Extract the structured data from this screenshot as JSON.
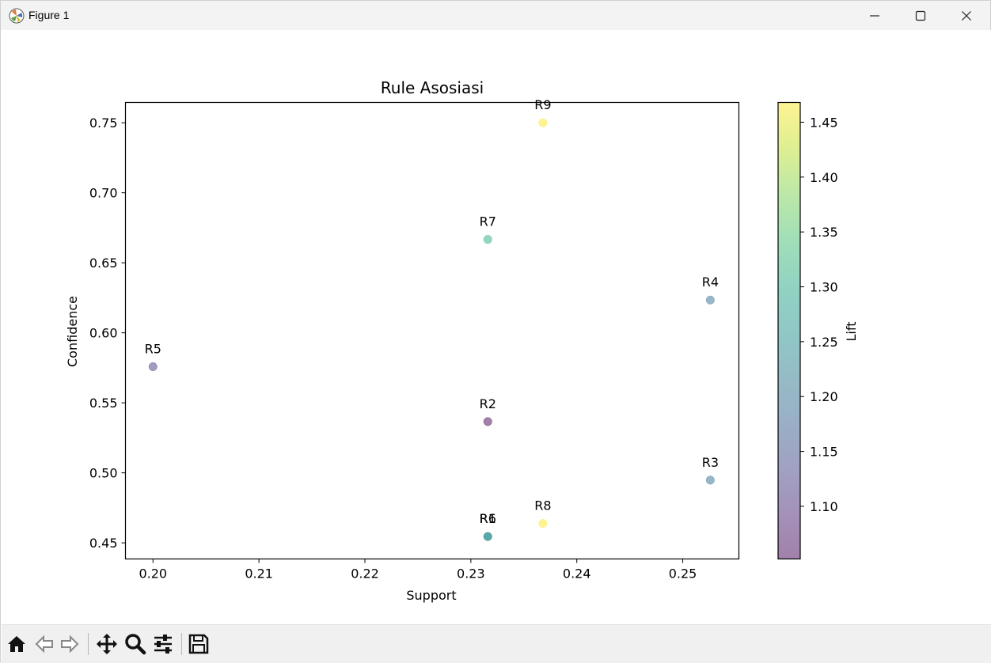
{
  "window": {
    "title": "Figure 1"
  },
  "toolbar": {
    "tools": [
      "home-icon",
      "back-arrow-icon",
      "forward-arrow-icon",
      "pan-icon",
      "zoom-icon",
      "configure-subplots-icon",
      "save-icon"
    ]
  },
  "chart_data": {
    "type": "scatter",
    "title": "Rule Asosiasi",
    "xlabel": "Support",
    "ylabel": "Confidence",
    "xlim": [
      0.1974,
      0.2553
    ],
    "ylim": [
      0.4385,
      0.7645
    ],
    "xticks": [
      0.2,
      0.21,
      0.22,
      0.23,
      0.24,
      0.25
    ],
    "xtick_labels": [
      "0.20",
      "0.21",
      "0.22",
      "0.23",
      "0.24",
      "0.25"
    ],
    "yticks": [
      0.45,
      0.5,
      0.55,
      0.6,
      0.65,
      0.7,
      0.75
    ],
    "ytick_labels": [
      "0.45",
      "0.50",
      "0.55",
      "0.60",
      "0.65",
      "0.70",
      "0.75"
    ],
    "colormap": "viridis",
    "alpha": 0.5,
    "colorbar": {
      "label": "Lift",
      "range": [
        1.052,
        1.468
      ],
      "ticks": [
        1.1,
        1.15,
        1.2,
        1.25,
        1.3,
        1.35,
        1.4,
        1.45
      ],
      "tick_labels": [
        "1.10",
        "1.15",
        "1.20",
        "1.25",
        "1.30",
        "1.35",
        "1.40",
        "1.45"
      ]
    },
    "points": [
      {
        "label": "R1",
        "support": 0.2316,
        "confidence": 0.4545,
        "lift": 1.25
      },
      {
        "label": "R2",
        "support": 0.2316,
        "confidence": 0.5366,
        "lift": 1.052
      },
      {
        "label": "R3",
        "support": 0.2526,
        "confidence": 0.4948,
        "lift": 1.2
      },
      {
        "label": "R4",
        "support": 0.2526,
        "confidence": 0.6234,
        "lift": 1.2
      },
      {
        "label": "R5",
        "support": 0.2,
        "confidence": 0.5758,
        "lift": 1.12
      },
      {
        "label": "R6",
        "support": 0.2316,
        "confidence": 0.4545,
        "lift": 1.25
      },
      {
        "label": "R7",
        "support": 0.2316,
        "confidence": 0.6667,
        "lift": 1.31
      },
      {
        "label": "R8",
        "support": 0.2368,
        "confidence": 0.4639,
        "lift": 1.468
      },
      {
        "label": "R9",
        "support": 0.2368,
        "confidence": 0.75,
        "lift": 1.468
      }
    ]
  }
}
